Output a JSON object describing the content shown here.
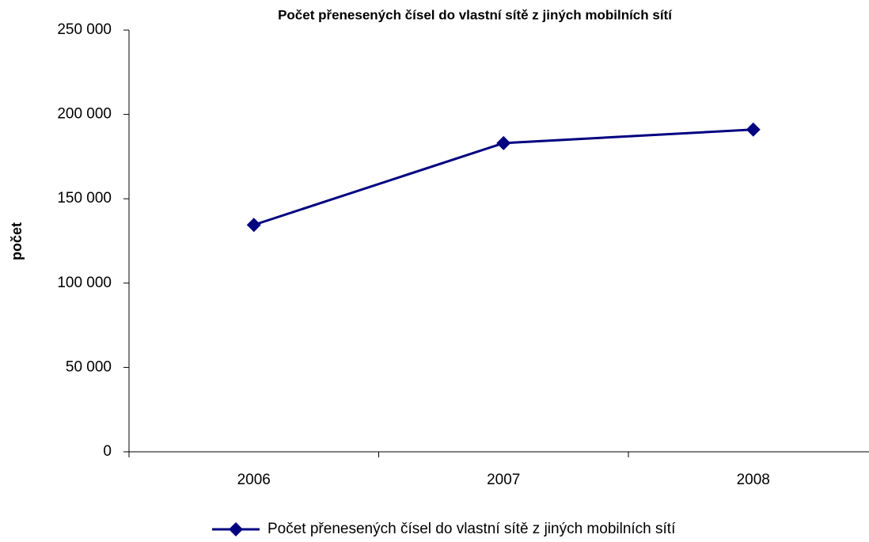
{
  "chart_data": {
    "type": "line",
    "title": "Počet přenesených čísel do vlastní sítě z jiných mobilních sítí",
    "y_label": "počet",
    "categories": [
      "2006",
      "2007",
      "2008"
    ],
    "series": [
      {
        "name": "Počet přenesených čísel do vlastní sítě z jiných mobilních sítí",
        "color": "#000080",
        "values": [
          134500,
          183000,
          191000
        ]
      }
    ],
    "ylim": [
      0,
      250000
    ],
    "yticks": [
      0,
      {
        "value": 50000,
        "label": "50 000"
      },
      {
        "value": 100000,
        "label": "100 000"
      },
      {
        "value": 150000,
        "label": "150 000"
      },
      {
        "value": 200000,
        "label": "200 000"
      },
      {
        "value": 250000,
        "label": "250 000"
      }
    ],
    "grid": false,
    "legend": "bottom"
  }
}
